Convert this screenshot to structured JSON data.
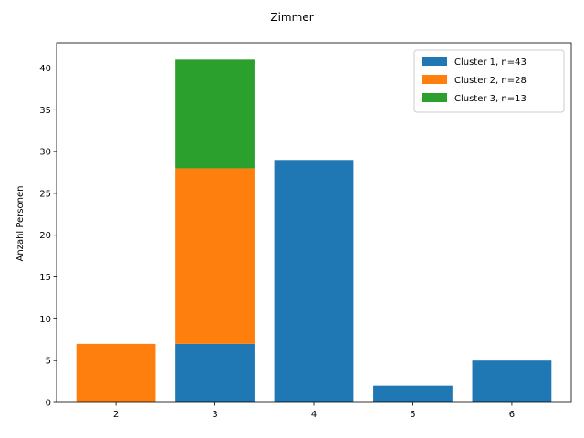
{
  "chart_data": {
    "type": "bar",
    "stacked": true,
    "title": "Zimmer",
    "xlabel": "",
    "ylabel": "Anzahl Personen",
    "categories": [
      "2",
      "3",
      "4",
      "5",
      "6"
    ],
    "series": [
      {
        "name": "Cluster 1, n=43",
        "color": "#1f77b4",
        "values": [
          0,
          7,
          29,
          2,
          5
        ]
      },
      {
        "name": "Cluster 2, n=28",
        "color": "#ff7f0e",
        "values": [
          7,
          21,
          0,
          0,
          0
        ]
      },
      {
        "name": "Cluster 3, n=13",
        "color": "#2ca02c",
        "values": [
          0,
          13,
          0,
          0,
          0
        ]
      }
    ],
    "ylim": [
      0,
      43
    ],
    "yticks": [
      0,
      5,
      10,
      15,
      20,
      25,
      30,
      35,
      40
    ],
    "legend": "top-right",
    "grid": false
  }
}
